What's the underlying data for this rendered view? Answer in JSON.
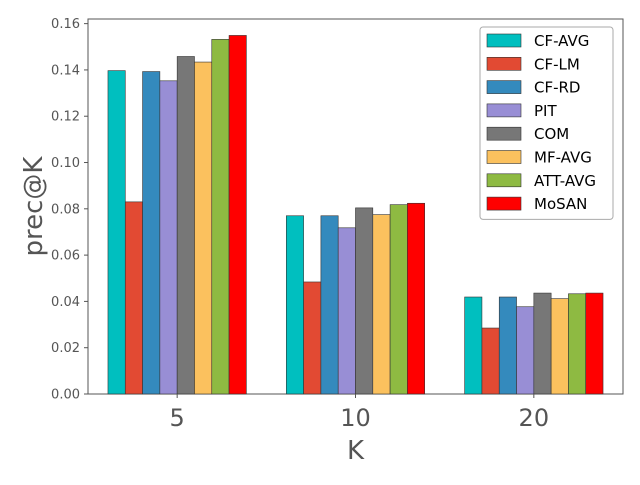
{
  "chart_data": {
    "type": "bar",
    "title": "",
    "xlabel": "K",
    "ylabel": "prec@K",
    "categories": [
      "5",
      "10",
      "20"
    ],
    "ylim": [
      0,
      0.162
    ],
    "yticks": [
      "0.00",
      "0.02",
      "0.04",
      "0.06",
      "0.08",
      "0.10",
      "0.12",
      "0.14",
      "0.16"
    ],
    "ytick_values": [
      0,
      0.02,
      0.04,
      0.06,
      0.08,
      0.1,
      0.12,
      0.14,
      0.16
    ],
    "grid": false,
    "legend_position": "top-right",
    "series": [
      {
        "name": "CF-AVG",
        "color": "#00bfbf",
        "values": [
          0.1397,
          0.077,
          0.0419
        ]
      },
      {
        "name": "CF-LM",
        "color": "#e24a33",
        "values": [
          0.083,
          0.0484,
          0.0285
        ]
      },
      {
        "name": "CF-RD",
        "color": "#348abd",
        "values": [
          0.1393,
          0.077,
          0.0419
        ]
      },
      {
        "name": "PIT",
        "color": "#988ed5",
        "values": [
          0.1353,
          0.0718,
          0.0377
        ]
      },
      {
        "name": "COM",
        "color": "#777777",
        "values": [
          0.1458,
          0.0804,
          0.0436
        ]
      },
      {
        "name": "MF-AVG",
        "color": "#fbc15e",
        "values": [
          0.1434,
          0.0775,
          0.0412
        ]
      },
      {
        "name": "ATT-AVG",
        "color": "#8eba42",
        "values": [
          0.1532,
          0.0818,
          0.0433
        ]
      },
      {
        "name": "MoSAN",
        "color": "#ff0000",
        "values": [
          0.1549,
          0.0824,
          0.0436
        ]
      }
    ]
  }
}
